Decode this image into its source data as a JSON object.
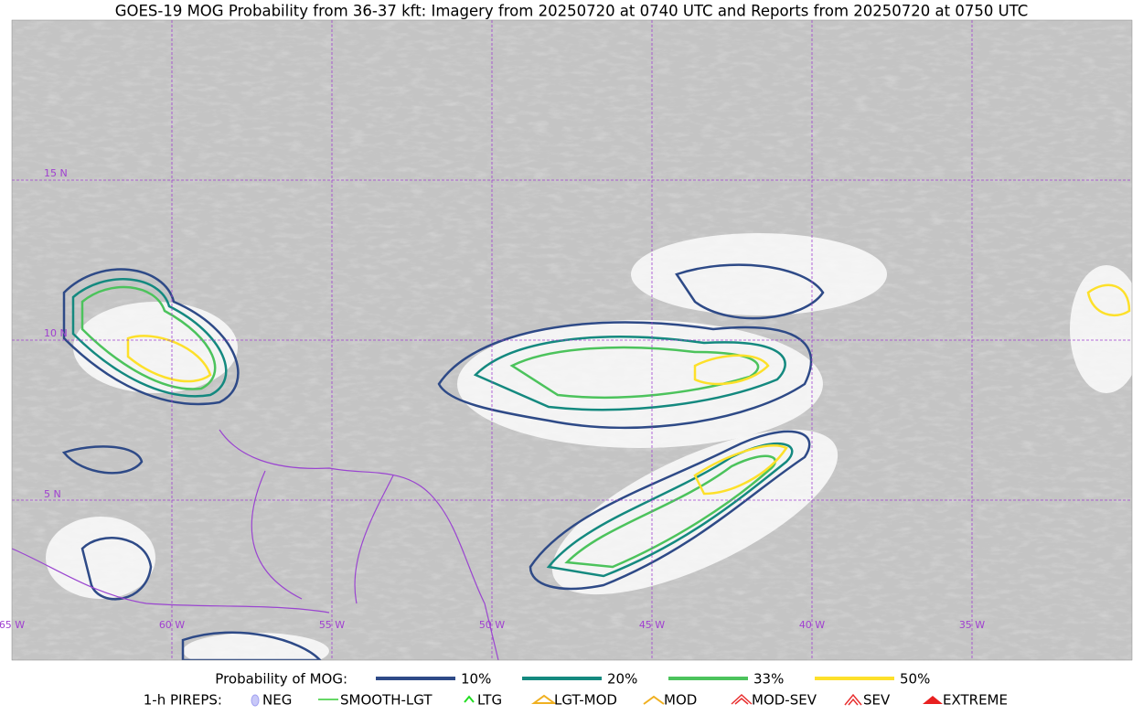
{
  "title": "GOES-19 MOG Probability from 36-37 kft: Imagery from 20250720 at 0740 UTC and Reports from 20250720 at 0750 UTC",
  "map": {
    "lat_labels": [
      "15 N",
      "10 N",
      "5 N"
    ],
    "lon_labels": [
      "65 W",
      "60 W",
      "55 W",
      "50 W",
      "45 W",
      "40 W",
      "35 W"
    ]
  },
  "legend": {
    "probability": {
      "title": "Probability of MOG:",
      "items": [
        {
          "label": "10%",
          "color": "#2e4a87"
        },
        {
          "label": "20%",
          "color": "#14897f"
        },
        {
          "label": "33%",
          "color": "#4cc35c"
        },
        {
          "label": "50%",
          "color": "#fde02a"
        }
      ]
    },
    "pireps": {
      "title": "1-h PIREPS:",
      "items": [
        "NEG",
        "SMOOTH-LGT",
        "LTG",
        "LGT-MOD",
        "MOD",
        "MOD-SEV",
        "SEV",
        "EXTREME"
      ]
    }
  }
}
